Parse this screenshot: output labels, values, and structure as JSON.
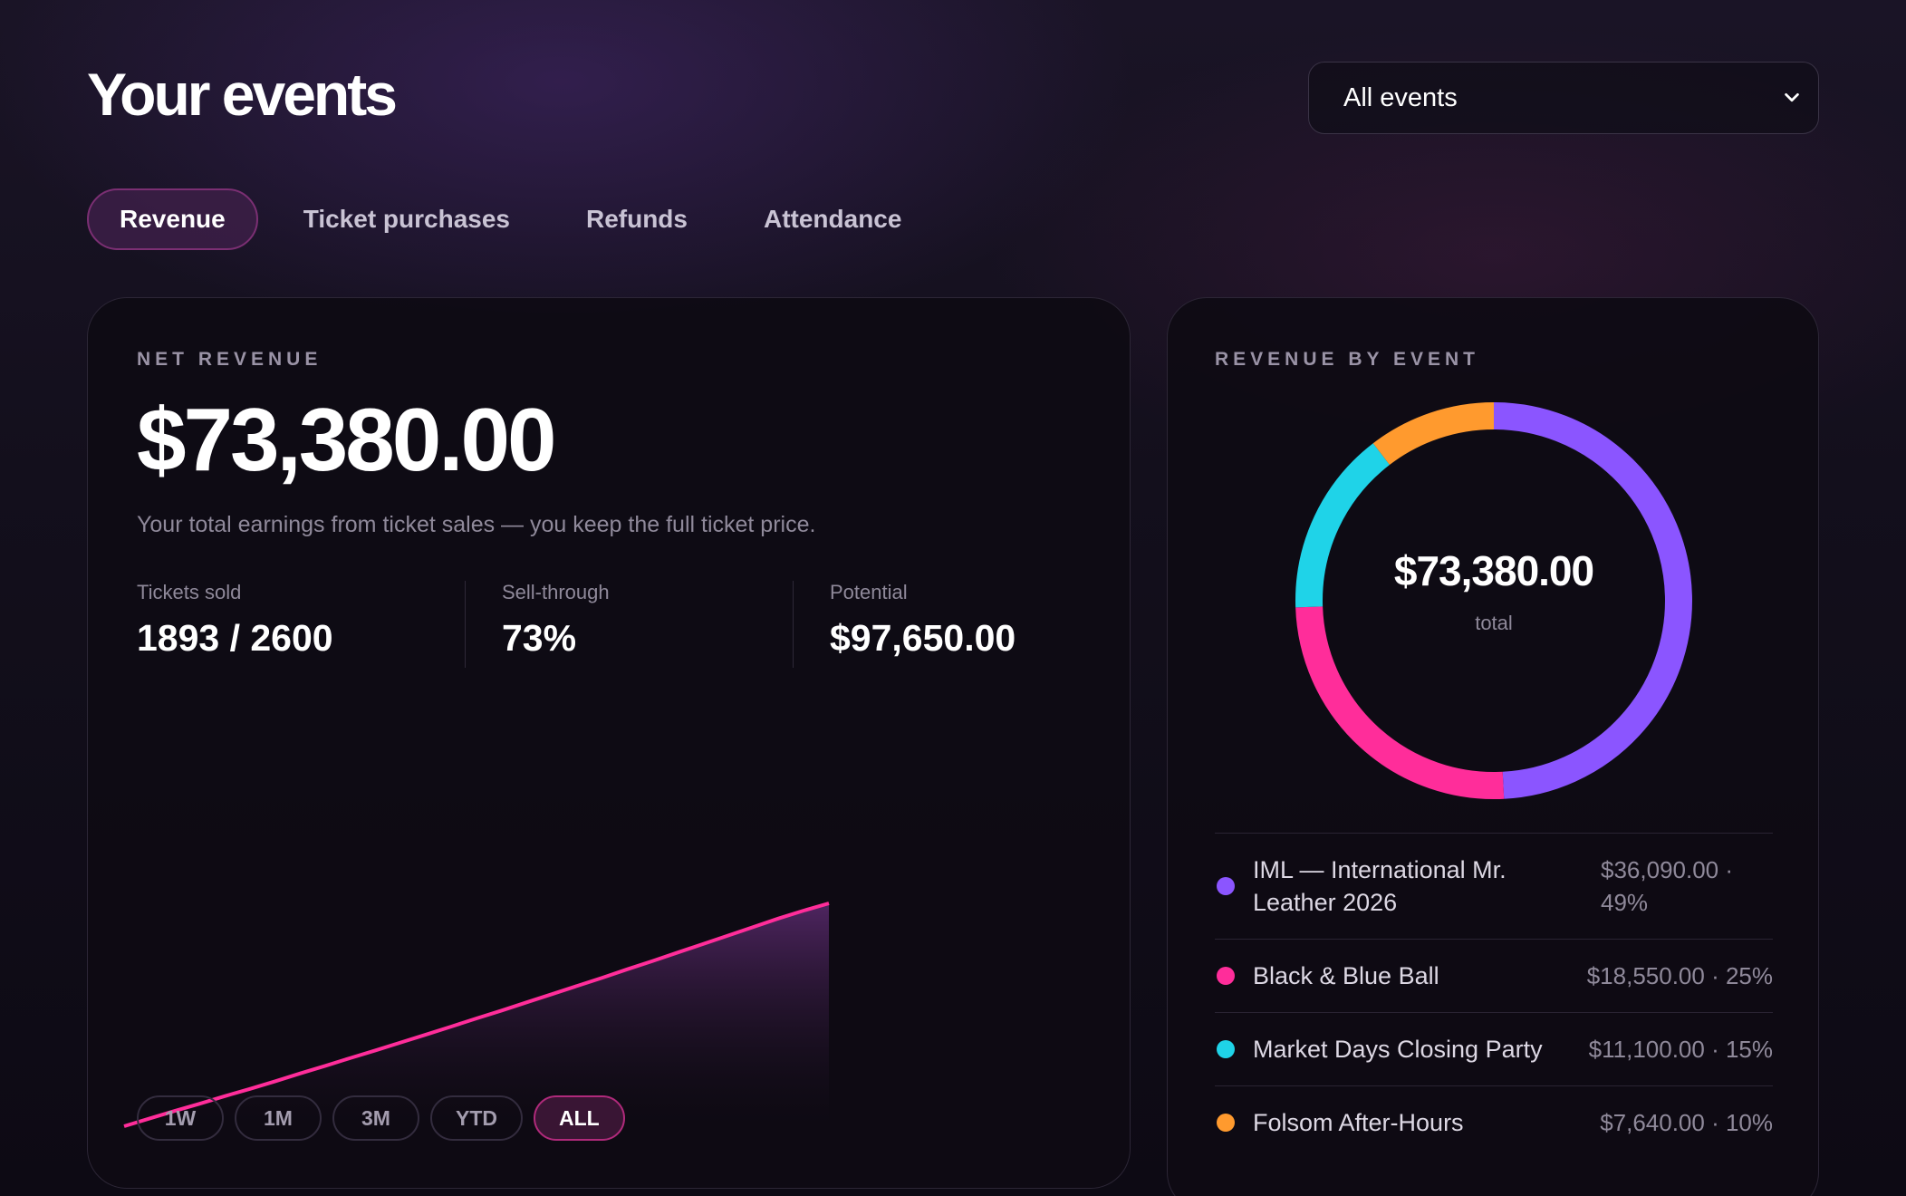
{
  "header": {
    "title": "Your events",
    "event_filter": {
      "selected": "All events"
    }
  },
  "tabs": [
    {
      "label": "Revenue",
      "active": true
    },
    {
      "label": "Ticket purchases",
      "active": false
    },
    {
      "label": "Refunds",
      "active": false
    },
    {
      "label": "Attendance",
      "active": false
    }
  ],
  "net_revenue": {
    "eyebrow": "NET REVENUE",
    "amount": "$73,380.00",
    "description": "Your total earnings from ticket sales — you keep the full ticket price.",
    "stats": [
      {
        "label": "Tickets sold",
        "value": "1893 / 2600"
      },
      {
        "label": "Sell-through",
        "value": "73%"
      },
      {
        "label": "Potential",
        "value": "$97,650.00"
      }
    ],
    "ranges": [
      {
        "label": "1W",
        "active": false
      },
      {
        "label": "1M",
        "active": false
      },
      {
        "label": "3M",
        "active": false
      },
      {
        "label": "YTD",
        "active": false
      },
      {
        "label": "ALL",
        "active": true
      }
    ]
  },
  "chart_data": [
    {
      "type": "area",
      "series": [
        {
          "values": [
            0,
            2500,
            5000,
            7400,
            9900,
            12300,
            14800,
            17400,
            19900,
            22500,
            25000,
            27600,
            30200,
            32800,
            35500,
            38100,
            40800,
            43500,
            46200,
            48900,
            51700,
            54400,
            57200,
            60000,
            62800,
            65600,
            68400,
            71000,
            73380
          ]
        }
      ],
      "ylim": [
        0,
        73380
      ],
      "line_color": "#ff2d9a",
      "grid": false
    },
    {
      "type": "pie",
      "title": "REVENUE BY EVENT",
      "center_value": "$73,380.00",
      "center_caption": "total",
      "slices": [
        {
          "label": "IML — International Mr. Leather 2026",
          "value": 36090,
          "display": "$36,090.00 · 49%",
          "color": "#8b55ff"
        },
        {
          "label": "Black & Blue Ball",
          "value": 18550,
          "display": "$18,550.00 · 25%",
          "color": "#ff2d9a"
        },
        {
          "label": "Market Days Closing Party",
          "value": 11100,
          "display": "$11,100.00 · 15%",
          "color": "#1fd3e8"
        },
        {
          "label": "Folsom After-Hours",
          "value": 7640,
          "display": "$7,640.00 · 10%",
          "color": "#ff9a2e"
        }
      ]
    }
  ]
}
